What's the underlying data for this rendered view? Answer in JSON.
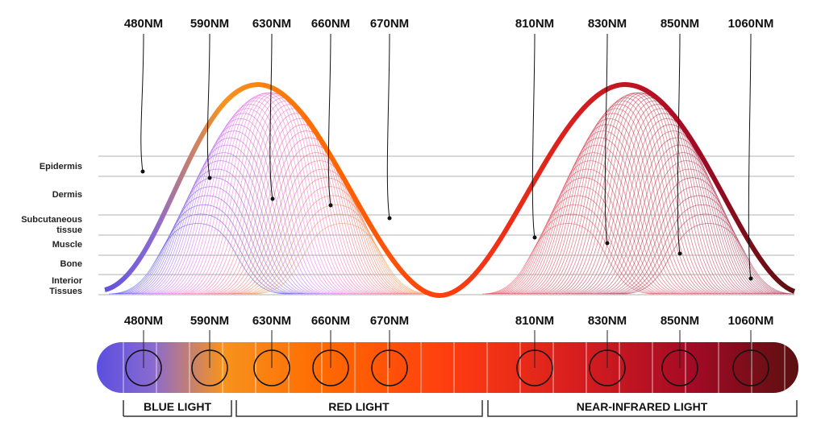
{
  "wavelengths": [
    "480NM",
    "590NM",
    "630NM",
    "660NM",
    "670NM",
    "810NM",
    "830NM",
    "850NM",
    "1060NM"
  ],
  "layers": [
    "Epidermis",
    "Dermis",
    "Subcutaneous tissue",
    "Muscle",
    "Bone",
    "Interior Tissues"
  ],
  "groups": [
    "BLUE LIGHT",
    "RED LIGHT",
    "NEAR-INFRARED LIGHT"
  ]
}
